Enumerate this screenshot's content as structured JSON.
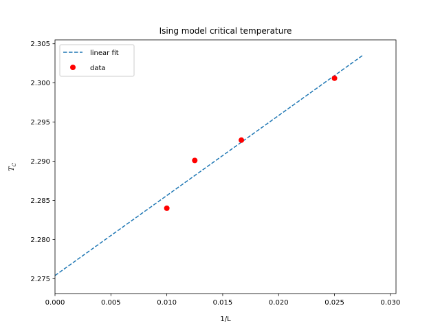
{
  "chart_data": {
    "type": "scatter",
    "title": "Ising model critical temperature",
    "xlabel": "1/L",
    "ylabel_main": "T",
    "ylabel_sub": "C",
    "xlim": [
      0.0,
      0.0305
    ],
    "ylim": [
      2.2731,
      2.3055
    ],
    "xticks": [
      0.0,
      0.005,
      0.01,
      0.015,
      0.02,
      0.025,
      0.03
    ],
    "xtick_labels": [
      "0.000",
      "0.005",
      "0.010",
      "0.015",
      "0.020",
      "0.025",
      "0.030"
    ],
    "yticks": [
      2.275,
      2.28,
      2.285,
      2.29,
      2.295,
      2.3,
      2.305
    ],
    "ytick_labels": [
      "2.275",
      "2.280",
      "2.285",
      "2.290",
      "2.295",
      "2.300",
      "2.305"
    ],
    "grid": false,
    "legend_position": "top-left",
    "series": [
      {
        "name": "linear fit",
        "kind": "line",
        "style": "dashed",
        "color": "#1f77b4",
        "x": [
          0.0,
          0.0275
        ],
        "y": [
          2.2754,
          2.3035
        ]
      },
      {
        "name": "data",
        "kind": "scatter",
        "color": "#ff0000",
        "x": [
          0.01,
          0.0125,
          0.01667,
          0.025
        ],
        "y": [
          2.284,
          2.2901,
          2.2927,
          2.3006
        ]
      }
    ]
  }
}
